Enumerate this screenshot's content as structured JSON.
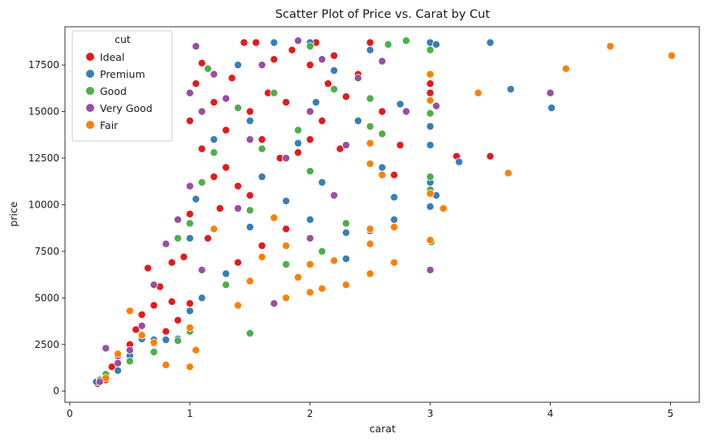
{
  "chart_data": {
    "type": "scatter",
    "title": "Scatter Plot of Price vs. Carat by Cut",
    "xlabel": "carat",
    "ylabel": "price",
    "xlim": [
      -0.04,
      5.24
    ],
    "ylim": [
      -600,
      19550
    ],
    "xticks": [
      0,
      1,
      2,
      3,
      4,
      5
    ],
    "yticks": [
      0,
      2500,
      5000,
      7500,
      10000,
      12500,
      15000,
      17500
    ],
    "grid": false,
    "legend": {
      "title": "cut",
      "placement": "top-left",
      "entries": [
        "Ideal",
        "Premium",
        "Good",
        "Very Good",
        "Fair"
      ]
    },
    "series": [
      {
        "name": "Ideal",
        "color": "#e41a1c",
        "points": [
          [
            0.23,
            400
          ],
          [
            0.3,
            600
          ],
          [
            0.35,
            1300
          ],
          [
            0.4,
            1900
          ],
          [
            0.5,
            2500
          ],
          [
            0.55,
            3300
          ],
          [
            0.6,
            4100
          ],
          [
            0.65,
            6600
          ],
          [
            0.7,
            4600
          ],
          [
            0.75,
            5600
          ],
          [
            0.8,
            3200
          ],
          [
            0.85,
            6900
          ],
          [
            0.9,
            3800
          ],
          [
            0.95,
            7200
          ],
          [
            1.0,
            4700
          ],
          [
            1.0,
            9500
          ],
          [
            1.0,
            14500
          ],
          [
            1.05,
            16500
          ],
          [
            1.1,
            13000
          ],
          [
            1.1,
            17600
          ],
          [
            1.2,
            11500
          ],
          [
            1.2,
            15500
          ],
          [
            1.3,
            12000
          ],
          [
            1.3,
            14000
          ],
          [
            1.35,
            16800
          ],
          [
            1.4,
            11000
          ],
          [
            1.45,
            18700
          ],
          [
            1.5,
            10500
          ],
          [
            1.5,
            15000
          ],
          [
            1.55,
            18700
          ],
          [
            1.6,
            13500
          ],
          [
            1.65,
            16000
          ],
          [
            1.7,
            17800
          ],
          [
            1.75,
            12500
          ],
          [
            1.8,
            15500
          ],
          [
            1.85,
            18300
          ],
          [
            1.9,
            12800
          ],
          [
            2.0,
            13500
          ],
          [
            2.0,
            17500
          ],
          [
            2.05,
            18700
          ],
          [
            2.1,
            14500
          ],
          [
            2.15,
            16500
          ],
          [
            2.2,
            18000
          ],
          [
            2.25,
            13000
          ],
          [
            2.3,
            15800
          ],
          [
            2.4,
            17000
          ],
          [
            2.5,
            18700
          ],
          [
            2.6,
            15000
          ],
          [
            2.7,
            11600
          ],
          [
            2.75,
            13200
          ],
          [
            3.0,
            16000
          ],
          [
            3.0,
            16500
          ],
          [
            3.22,
            12600
          ],
          [
            3.5,
            12600
          ],
          [
            1.6,
            7800
          ],
          [
            1.8,
            8700
          ],
          [
            1.25,
            9800
          ],
          [
            0.85,
            4800
          ],
          [
            1.15,
            8200
          ],
          [
            1.4,
            6900
          ]
        ]
      },
      {
        "name": "Premium",
        "color": "#377eb8",
        "points": [
          [
            0.22,
            500
          ],
          [
            0.3,
            700
          ],
          [
            0.4,
            1100
          ],
          [
            0.5,
            1900
          ],
          [
            0.6,
            2800
          ],
          [
            0.7,
            2750
          ],
          [
            0.8,
            2750
          ],
          [
            0.9,
            2800
          ],
          [
            1.0,
            4300
          ],
          [
            1.0,
            8200
          ],
          [
            1.05,
            10300
          ],
          [
            1.1,
            5000
          ],
          [
            1.2,
            13500
          ],
          [
            1.3,
            6300
          ],
          [
            1.4,
            17500
          ],
          [
            1.5,
            8800
          ],
          [
            1.5,
            14500
          ],
          [
            1.6,
            11500
          ],
          [
            1.7,
            18700
          ],
          [
            1.8,
            10200
          ],
          [
            1.9,
            13300
          ],
          [
            2.0,
            18700
          ],
          [
            2.0,
            9200
          ],
          [
            2.05,
            15500
          ],
          [
            2.1,
            11200
          ],
          [
            2.2,
            17200
          ],
          [
            2.3,
            8500
          ],
          [
            2.4,
            14500
          ],
          [
            2.5,
            18300
          ],
          [
            2.6,
            12000
          ],
          [
            2.7,
            9200
          ],
          [
            2.75,
            15400
          ],
          [
            2.8,
            15000
          ],
          [
            3.0,
            18700
          ],
          [
            3.0,
            14200
          ],
          [
            3.0,
            13200
          ],
          [
            3.0,
            11200
          ],
          [
            3.0,
            9900
          ],
          [
            3.05,
            18600
          ],
          [
            3.05,
            10500
          ],
          [
            3.24,
            12300
          ],
          [
            3.5,
            18700
          ],
          [
            3.67,
            16200
          ],
          [
            4.01,
            15200
          ],
          [
            2.7,
            10400
          ],
          [
            2.3,
            7100
          ]
        ]
      },
      {
        "name": "Good",
        "color": "#4daf4a",
        "points": [
          [
            0.25,
            600
          ],
          [
            0.3,
            900
          ],
          [
            0.5,
            1600
          ],
          [
            0.7,
            2100
          ],
          [
            0.9,
            2700
          ],
          [
            0.9,
            8200
          ],
          [
            1.0,
            3200
          ],
          [
            1.0,
            9000
          ],
          [
            1.1,
            11200
          ],
          [
            1.15,
            17300
          ],
          [
            1.2,
            12800
          ],
          [
            1.3,
            5700
          ],
          [
            1.4,
            15200
          ],
          [
            1.5,
            3100
          ],
          [
            1.5,
            9700
          ],
          [
            1.6,
            13000
          ],
          [
            1.7,
            16000
          ],
          [
            1.8,
            6800
          ],
          [
            1.9,
            14000
          ],
          [
            2.0,
            18500
          ],
          [
            2.0,
            11800
          ],
          [
            2.1,
            7500
          ],
          [
            2.2,
            16200
          ],
          [
            2.3,
            9000
          ],
          [
            2.5,
            15700
          ],
          [
            2.5,
            14200
          ],
          [
            2.6,
            13800
          ],
          [
            2.65,
            18600
          ],
          [
            2.8,
            18800
          ],
          [
            3.0,
            18300
          ],
          [
            3.0,
            14900
          ],
          [
            3.0,
            11500
          ],
          [
            3.0,
            10800
          ],
          [
            3.01,
            8000
          ]
        ]
      },
      {
        "name": "Very Good",
        "color": "#984ea3",
        "points": [
          [
            0.25,
            500
          ],
          [
            0.3,
            2300
          ],
          [
            0.4,
            1500
          ],
          [
            0.5,
            2200
          ],
          [
            0.6,
            3500
          ],
          [
            0.7,
            5700
          ],
          [
            0.8,
            7900
          ],
          [
            0.9,
            9200
          ],
          [
            1.0,
            16000
          ],
          [
            1.0,
            11000
          ],
          [
            1.05,
            18500
          ],
          [
            1.1,
            6500
          ],
          [
            1.2,
            17000
          ],
          [
            1.3,
            15700
          ],
          [
            1.4,
            9800
          ],
          [
            1.5,
            13500
          ],
          [
            1.6,
            17500
          ],
          [
            1.7,
            4700
          ],
          [
            1.8,
            12500
          ],
          [
            1.9,
            18800
          ],
          [
            2.0,
            15000
          ],
          [
            2.0,
            8200
          ],
          [
            2.1,
            17800
          ],
          [
            2.2,
            10500
          ],
          [
            2.3,
            13200
          ],
          [
            2.4,
            16800
          ],
          [
            2.5,
            8600
          ],
          [
            2.6,
            17700
          ],
          [
            2.8,
            15000
          ],
          [
            3.05,
            15300
          ],
          [
            3.0,
            6500
          ],
          [
            4.0,
            16000
          ],
          [
            1.1,
            15000
          ]
        ]
      },
      {
        "name": "Fair",
        "color": "#ff7f00",
        "points": [
          [
            0.3,
            700
          ],
          [
            0.4,
            2000
          ],
          [
            0.5,
            4300
          ],
          [
            0.6,
            3000
          ],
          [
            0.7,
            2600
          ],
          [
            0.8,
            1400
          ],
          [
            1.0,
            1300
          ],
          [
            1.0,
            3400
          ],
          [
            1.05,
            2200
          ],
          [
            1.2,
            8700
          ],
          [
            1.4,
            4600
          ],
          [
            1.5,
            5900
          ],
          [
            1.6,
            7200
          ],
          [
            1.7,
            9300
          ],
          [
            1.8,
            7800
          ],
          [
            1.8,
            5000
          ],
          [
            1.9,
            6100
          ],
          [
            2.0,
            5300
          ],
          [
            2.0,
            6800
          ],
          [
            2.1,
            5500
          ],
          [
            2.2,
            7000
          ],
          [
            2.3,
            5700
          ],
          [
            2.5,
            6300
          ],
          [
            2.5,
            7900
          ],
          [
            2.5,
            8700
          ],
          [
            2.5,
            12200
          ],
          [
            2.5,
            13300
          ],
          [
            2.6,
            11600
          ],
          [
            2.7,
            6900
          ],
          [
            2.7,
            8800
          ],
          [
            3.0,
            17000
          ],
          [
            3.0,
            15600
          ],
          [
            3.0,
            10600
          ],
          [
            3.0,
            8100
          ],
          [
            3.11,
            9800
          ],
          [
            3.4,
            16000
          ],
          [
            3.65,
            11700
          ],
          [
            4.13,
            17300
          ],
          [
            4.5,
            18500
          ],
          [
            5.01,
            18000
          ]
        ]
      }
    ]
  }
}
